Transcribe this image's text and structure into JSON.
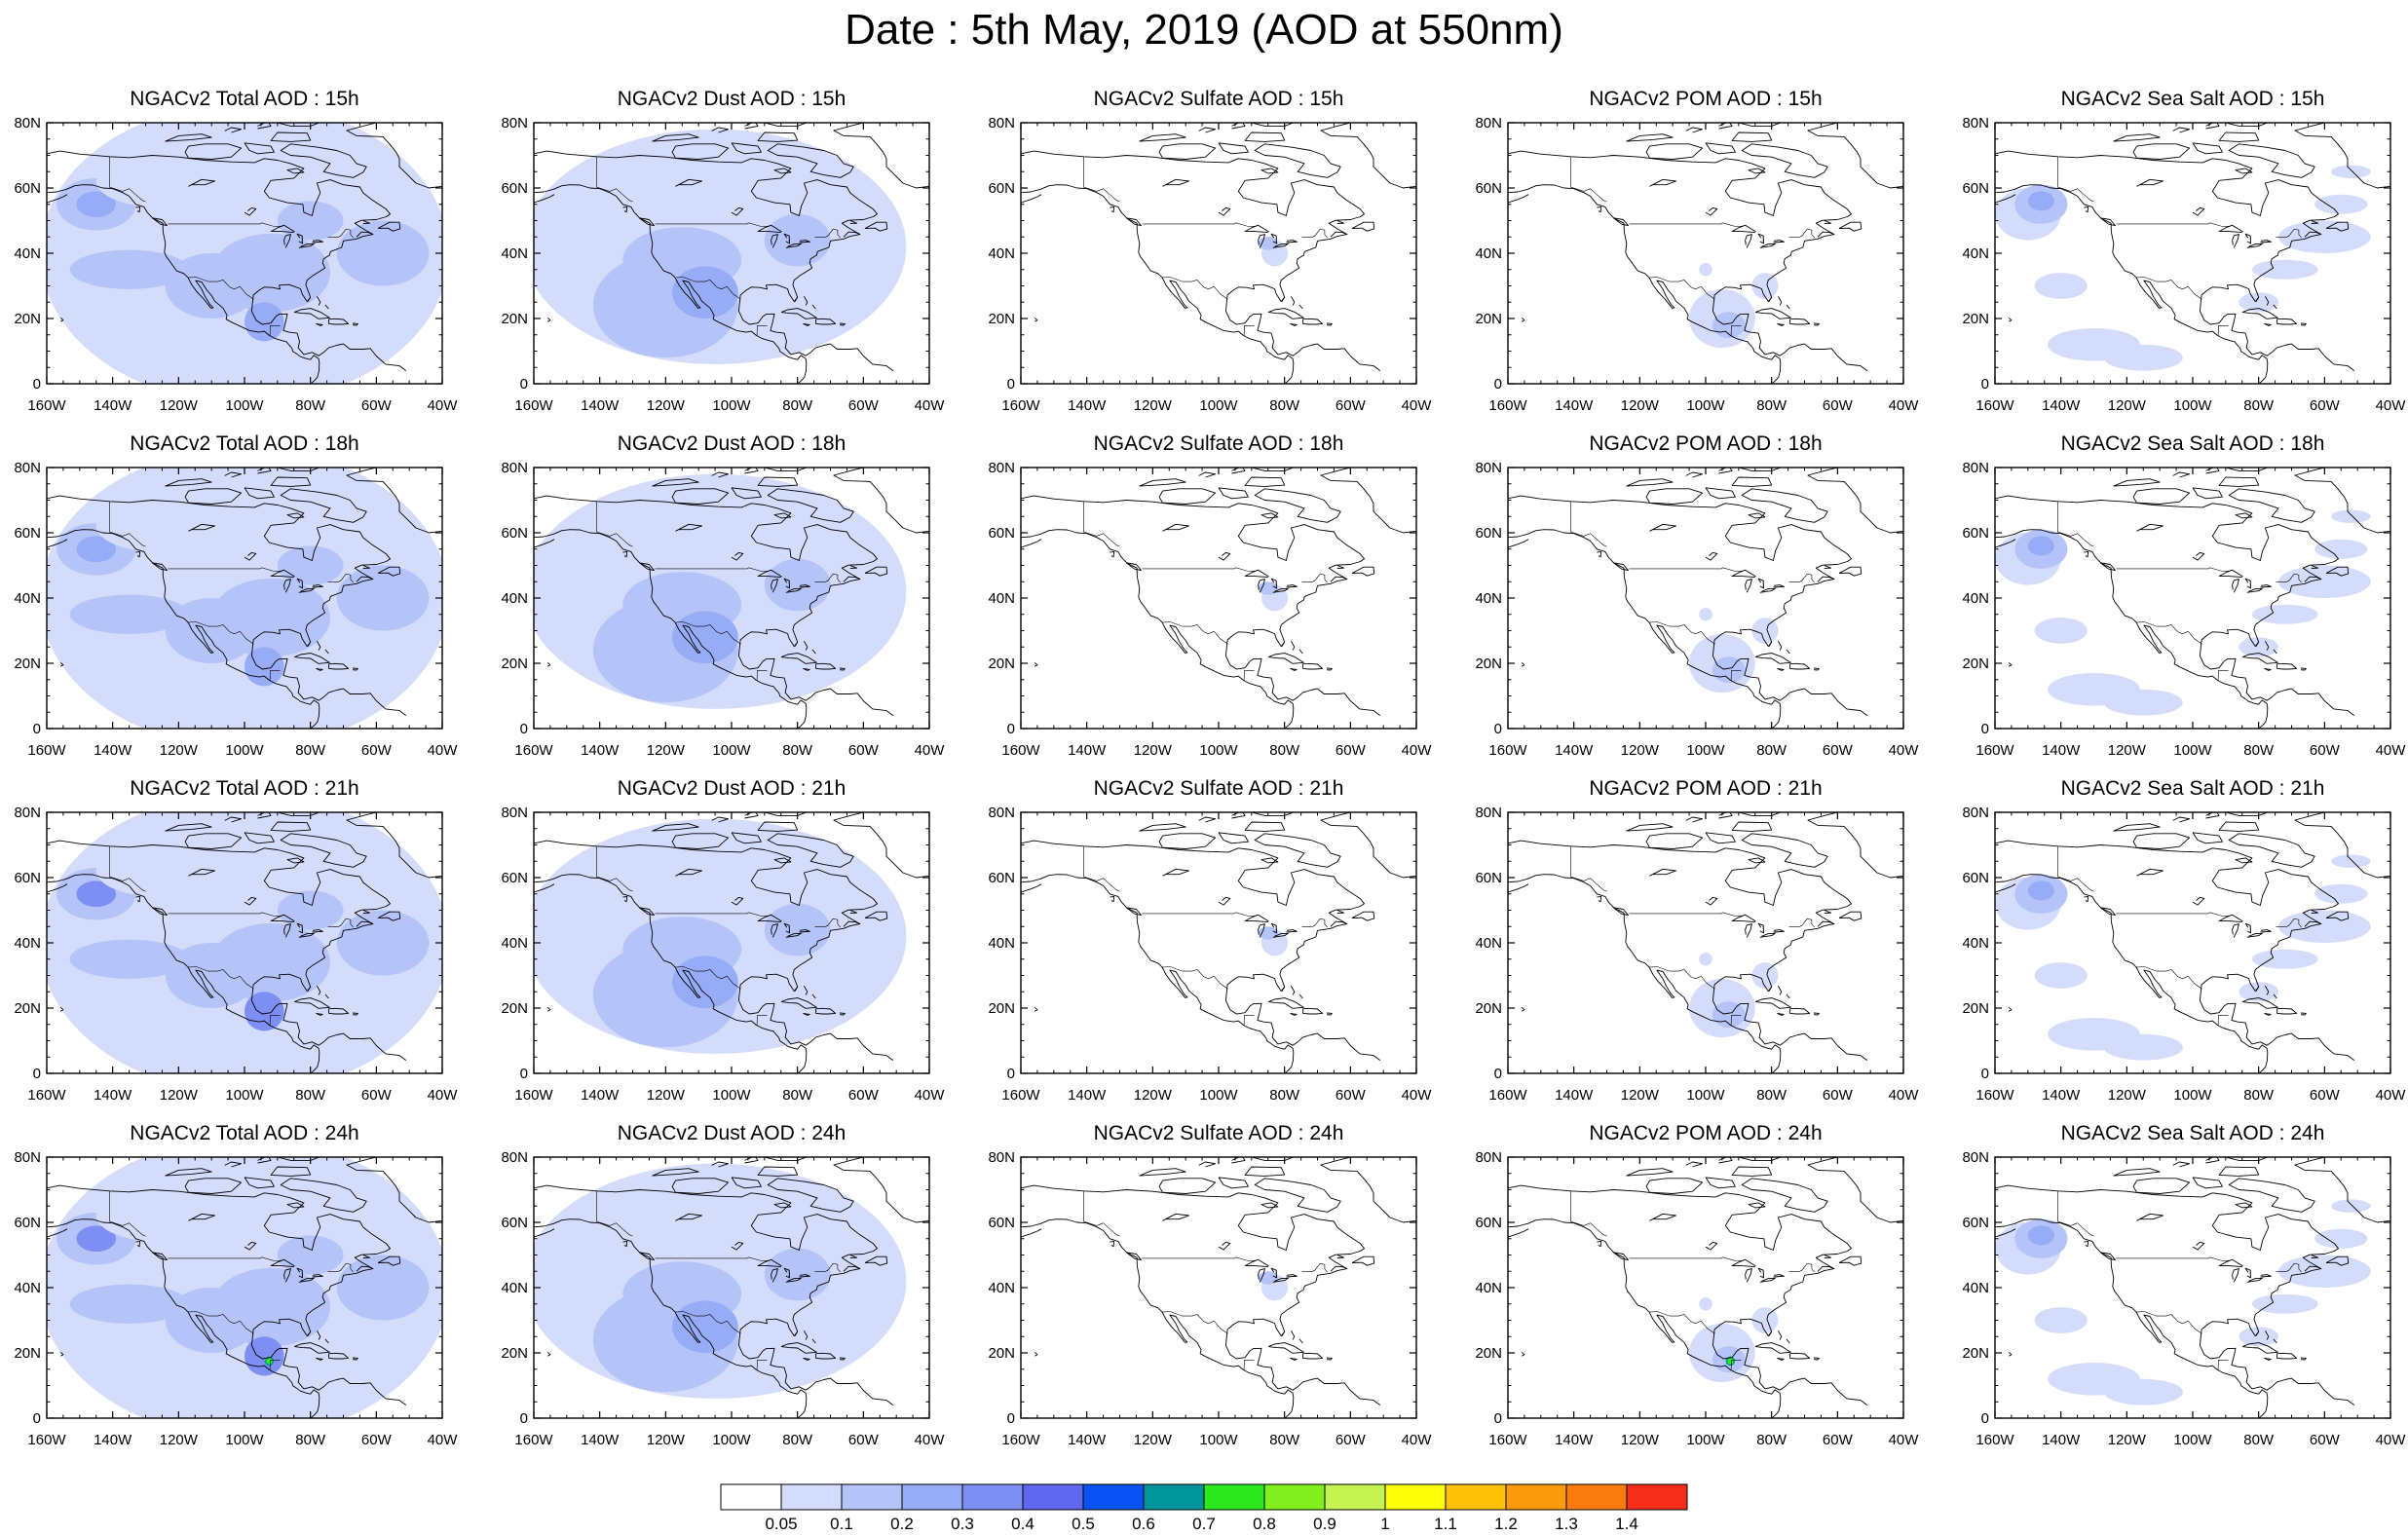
{
  "title": "Date : 5th May, 2019 (AOD at 550nm)",
  "species": [
    {
      "key": "total",
      "label": "Total"
    },
    {
      "key": "dust",
      "label": "Dust"
    },
    {
      "key": "sulfate",
      "label": "Sulfate"
    },
    {
      "key": "pom",
      "label": "POM"
    },
    {
      "key": "seasalt",
      "label": "Sea Salt"
    }
  ],
  "forecast_hours": [
    "15h",
    "18h",
    "21h",
    "24h"
  ],
  "panel_titles": [
    [
      "NGACv2 Total AOD : 15h",
      "NGACv2 Dust AOD : 15h",
      "NGACv2 Sulfate AOD : 15h",
      "NGACv2 POM AOD : 15h",
      "NGACv2 Sea Salt AOD : 15h"
    ],
    [
      "NGACv2 Total AOD : 18h",
      "NGACv2 Dust AOD : 18h",
      "NGACv2 Sulfate AOD : 18h",
      "NGACv2 POM AOD : 18h",
      "NGACv2 Sea Salt AOD : 18h"
    ],
    [
      "NGACv2 Total AOD : 21h",
      "NGACv2 Dust AOD : 21h",
      "NGACv2 Sulfate AOD : 21h",
      "NGACv2 POM AOD : 21h",
      "NGACv2 Sea Salt AOD : 21h"
    ],
    [
      "NGACv2 Total AOD : 24h",
      "NGACv2 Dust AOD : 24h",
      "NGACv2 Sulfate AOD : 24h",
      "NGACv2 POM AOD : 24h",
      "NGACv2 Sea Salt  AOD : 24h"
    ]
  ],
  "map": {
    "lon_range": [
      -160,
      -40
    ],
    "lat_range": [
      0,
      80
    ],
    "lon_ticks": [
      "160W",
      "140W",
      "120W",
      "100W",
      "80W",
      "60W",
      "40W"
    ],
    "lat_ticks": [
      "0",
      "20N",
      "40N",
      "60N",
      "80N"
    ]
  },
  "colorbar": {
    "colors": [
      "#ffffff",
      "#d3dcfb",
      "#b5c4f8",
      "#96acf6",
      "#7d8ff3",
      "#5e67ee",
      "#0b52f4",
      "#00959a",
      "#2ee81e",
      "#83ee1e",
      "#c6f252",
      "#fdfd08",
      "#fdc208",
      "#fb9a0a",
      "#f97b0d",
      "#f72d1b"
    ],
    "labels": [
      "0.05",
      "0.1",
      "0.2",
      "0.3",
      "0.4",
      "0.5",
      "0.6",
      "0.7",
      "0.8",
      "0.9",
      "1",
      "1.1",
      "1.2",
      "1.3",
      "1.4"
    ]
  },
  "chart_data": {
    "type": "heatmap",
    "variable": "AOD at 550nm",
    "date": "5th May, 2019",
    "grid_rows": [
      "15h",
      "18h",
      "21h",
      "24h"
    ],
    "grid_cols": [
      "Total",
      "Dust",
      "Sulfate",
      "POM",
      "Sea Salt"
    ],
    "lon_range": [
      -160,
      -40
    ],
    "lat_range": [
      0,
      80
    ],
    "levels": [
      0.05,
      0.1,
      0.2,
      0.3,
      0.4,
      0.5,
      0.6,
      0.7,
      0.8,
      0.9,
      1,
      1.1,
      1.2,
      1.3,
      1.4
    ]
  }
}
